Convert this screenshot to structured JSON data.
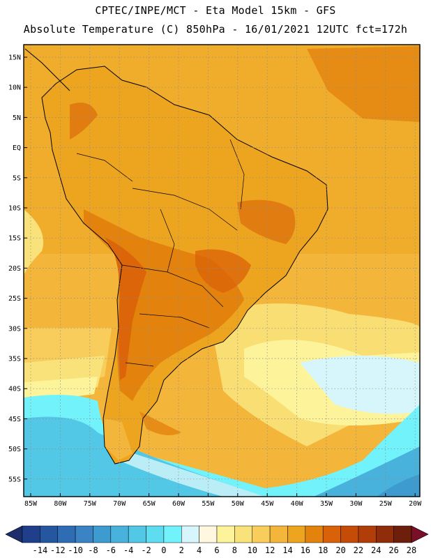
{
  "header": {
    "line1": "CPTEC/INPE/MCT -  Eta Model 15km - GFS",
    "line2": "Absolute Temperature (C) 850hPa - 16/01/2021 12UTC fct=172h"
  },
  "map": {
    "lat_labels": [
      "15N",
      "10N",
      "5N",
      "EQ",
      "5S",
      "10S",
      "15S",
      "20S",
      "25S",
      "30S",
      "35S",
      "40S",
      "45S",
      "50S",
      "55S"
    ],
    "lon_labels": [
      "85W",
      "80W",
      "75W",
      "70W",
      "65W",
      "60W",
      "55W",
      "50W",
      "45W",
      "40W",
      "35W",
      "30W",
      "25W",
      "20W"
    ],
    "variable": "Absolute Temperature (C)",
    "level": "850hPa"
  },
  "colorbar": {
    "ticks": [
      "-14",
      "-12",
      "-10",
      "-8",
      "-6",
      "-4",
      "-2",
      "0",
      "2",
      "4",
      "6",
      "8",
      "10",
      "12",
      "14",
      "16",
      "18",
      "20",
      "22",
      "24",
      "26",
      "28"
    ],
    "colors": [
      "#1f3f8a",
      "#2556a0",
      "#2e6cb4",
      "#3a83c4",
      "#3e9bd0",
      "#48b2dc",
      "#52c8e6",
      "#5eddf0",
      "#72f2fa",
      "#d6f6fb",
      "#fff7e0",
      "#fdf39a",
      "#fae27a",
      "#f8cd5c",
      "#f4b63a",
      "#eda41f",
      "#e3820d",
      "#d96208",
      "#c54c07",
      "#b13e08",
      "#8f2c0a",
      "#6e1f0b"
    ],
    "under_color": "#1c2d6b",
    "over_color": "#7a0f2a"
  },
  "colors": {
    "ocean_warm": "#f7c44d",
    "land_hot": "#e0800f",
    "land_warm": "#eda520",
    "cool_sea": "#fbe98a",
    "cold_sea": "#52c8e6"
  }
}
